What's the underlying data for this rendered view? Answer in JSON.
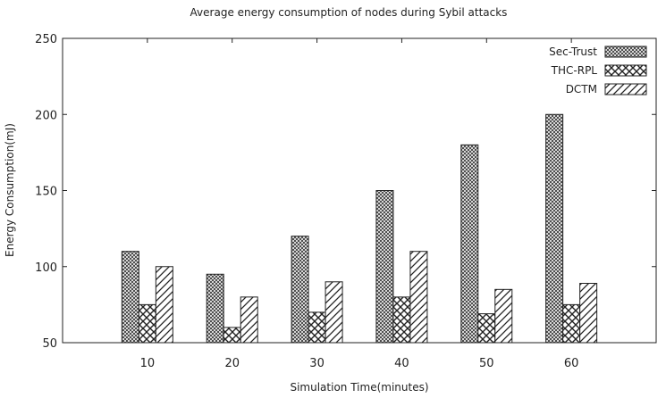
{
  "chart_data": {
    "type": "bar",
    "title": "Average energy consumption of nodes during Sybil attacks",
    "xlabel": "Simulation Time(minutes)",
    "ylabel": "Energy Consumption(mJ)",
    "categories": [
      "10",
      "20",
      "30",
      "40",
      "50",
      "60"
    ],
    "ylim": [
      50,
      250
    ],
    "yticks": [
      50,
      100,
      150,
      200,
      250
    ],
    "grid": false,
    "legend_position": "top-right",
    "series": [
      {
        "name": "Sec-Trust",
        "pattern": "fine-crosshatch",
        "values": [
          110,
          95,
          120,
          150,
          180,
          200
        ]
      },
      {
        "name": "THC-RPL",
        "pattern": "coarse-crosshatch",
        "values": [
          75,
          60,
          70,
          80,
          69,
          75
        ]
      },
      {
        "name": "DCTM",
        "pattern": "diagonal-stripes",
        "values": [
          100,
          80,
          90,
          110,
          85,
          89
        ]
      }
    ]
  }
}
